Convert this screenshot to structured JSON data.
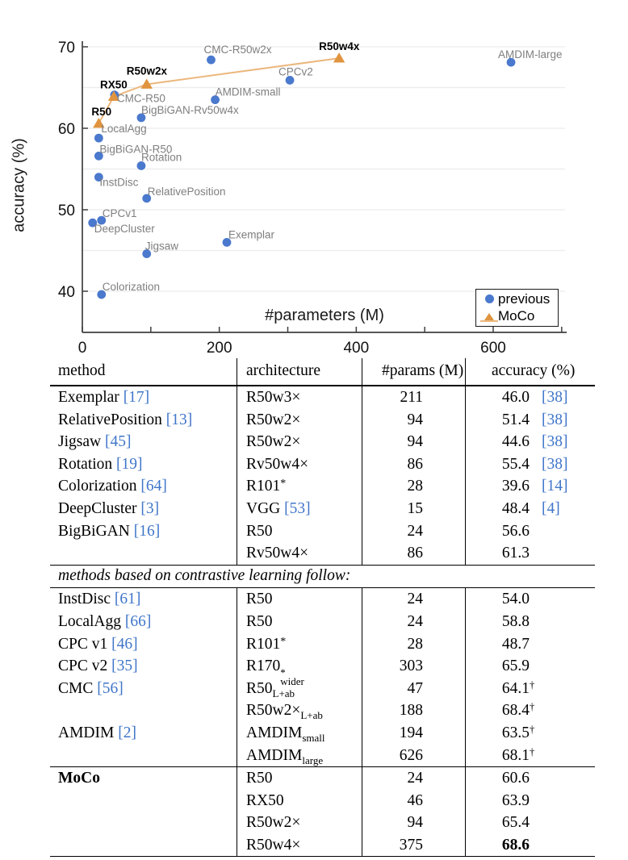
{
  "colors": {
    "previous_marker": "#4a79cd",
    "moco_marker": "#e0943f",
    "moco_line": "#ecb77e",
    "prev_label": "#7f7f7f",
    "grid": "#ececec",
    "axis": "#3f3f3f",
    "citation": "#4076c9"
  },
  "chart_data": {
    "type": "scatter",
    "title": "",
    "xlabel": "#parameters (M)",
    "ylabel": "accuracy (%)",
    "xlim": [
      0,
      700
    ],
    "ylim": [
      34.9,
      70.8
    ],
    "grid": "horizontal, every 5 units",
    "grid_y": [
      40,
      45,
      50,
      55,
      60,
      65,
      70
    ],
    "yticks": [
      40,
      50,
      60,
      70
    ],
    "xticks": [
      0,
      100,
      200,
      300,
      400,
      500,
      600,
      700
    ],
    "xtick_labeled": [
      0,
      200,
      400,
      600
    ],
    "legend_position": "bottom-right",
    "series": [
      {
        "name": "previous",
        "marker": "circle",
        "color": "#4a79cd",
        "label_color": "#7f7f7f",
        "points": [
          {
            "label": "Exemplar",
            "x": 211,
            "y": 46.0,
            "dx": 2,
            "dy": -5
          },
          {
            "label": "RelativePosition",
            "x": 94,
            "y": 51.4,
            "dx": 1,
            "dy": -4
          },
          {
            "label": "Jigsaw",
            "x": 94,
            "y": 44.6,
            "dx": -2,
            "dy": -5
          },
          {
            "label": "Rotation",
            "x": 86,
            "y": 55.4,
            "dx": 0,
            "dy": -6
          },
          {
            "label": "Colorization",
            "x": 28,
            "y": 39.6,
            "dx": 1,
            "dy": -5
          },
          {
            "label": "DeepCluster",
            "x": 15,
            "y": 48.4,
            "dx": 2,
            "dy": 12
          },
          {
            "label": "BigBiGAN-R50",
            "x": 24,
            "y": 56.6,
            "dx": 1,
            "dy": -4
          },
          {
            "label": "BigBiGAN-Rv50w4x",
            "x": 86,
            "y": 61.3,
            "dx": 0,
            "dy": -5
          },
          {
            "label": "InstDisc",
            "x": 24,
            "y": 54.0,
            "dx": 1,
            "dy": 11
          },
          {
            "label": "LocalAgg",
            "x": 24,
            "y": 58.8,
            "dx": 3,
            "dy": -7
          },
          {
            "label": "CPCv1",
            "x": 28,
            "y": 48.7,
            "dx": 1,
            "dy": -4
          },
          {
            "label": "CPCv2",
            "x": 303,
            "y": 65.9,
            "dx": -14,
            "dy": -6
          },
          {
            "label": "CMC-R50",
            "x": 47,
            "y": 64.1,
            "dx": 3,
            "dy": 9
          },
          {
            "label": "CMC-R50w2x",
            "x": 188,
            "y": 68.4,
            "dx": -9,
            "dy": -8
          },
          {
            "label": "AMDIM-small",
            "x": 194,
            "y": 63.5,
            "dx": 0,
            "dy": -5
          },
          {
            "label": "AMDIM-large",
            "x": 626,
            "y": 68.1,
            "dx": -16,
            "dy": -5
          }
        ]
      },
      {
        "name": "MoCo",
        "marker": "triangle",
        "line": true,
        "color": "#e0943f",
        "line_color": "#ecb77e",
        "label_color": "#000000",
        "label_bold": true,
        "points": [
          {
            "label": "R50",
            "x": 24,
            "y": 60.6,
            "dx": -9,
            "dy": -10
          },
          {
            "label": "RX50",
            "x": 46,
            "y": 63.9,
            "dx": -17,
            "dy": -10
          },
          {
            "label": "R50w2x",
            "x": 94,
            "y": 65.4,
            "dx": -25,
            "dy": -12
          },
          {
            "label": "R50w4x",
            "x": 375,
            "y": 68.6,
            "dx": -25,
            "dy": -10
          }
        ]
      }
    ]
  },
  "table": {
    "headers": [
      "method",
      "architecture",
      "#params (M)",
      "accuracy (%)"
    ],
    "rows": [
      {
        "method": "Exemplar",
        "mcite": "[17]",
        "arch": "R50w3×",
        "params": "211",
        "acc": "46.0",
        "acite": "[38]"
      },
      {
        "method": "RelativePosition",
        "mcite": "[13]",
        "arch": "R50w2×",
        "params": "94",
        "acc": "51.4",
        "acite": "[38]"
      },
      {
        "method": "Jigsaw",
        "mcite": "[45]",
        "arch": "R50w2×",
        "params": "94",
        "acc": "44.6",
        "acite": "[38]"
      },
      {
        "method": "Rotation",
        "mcite": "[19]",
        "arch": "Rv50w4×",
        "params": "86",
        "acc": "55.4",
        "acite": "[38]"
      },
      {
        "method": "Colorization",
        "mcite": "[64]",
        "arch": "R101",
        "asup": "*",
        "params": "28",
        "acc": "39.6",
        "acite": "[14]"
      },
      {
        "method": "DeepCluster",
        "mcite": "[3]",
        "arch": "VGG",
        "archcite": "[53]",
        "params": "15",
        "acc": "48.4",
        "acite": "[4]"
      },
      {
        "method": "BigBiGAN",
        "mcite": "[16]",
        "arch": "R50",
        "params": "24",
        "acc": "56.6"
      },
      {
        "arch": "Rv50w4×",
        "params": "86",
        "acc": "61.3"
      },
      {
        "divider": "methods based on contrastive learning follow:"
      },
      {
        "method": "InstDisc",
        "mcite": "[61]",
        "arch": "R50",
        "params": "24",
        "acc": "54.0"
      },
      {
        "method": "LocalAgg",
        "mcite": "[66]",
        "arch": "R50",
        "params": "24",
        "acc": "58.8"
      },
      {
        "method": "CPC v1",
        "mcite": "[46]",
        "arch": "R101",
        "asup": "*",
        "params": "28",
        "acc": "48.7"
      },
      {
        "method": "CPC v2",
        "mcite": "[35]",
        "arch": "R170",
        "asup": "*",
        "asub": "wider",
        "params": "303",
        "acc": "65.9"
      },
      {
        "method": "CMC",
        "mcite": "[56]",
        "arch": "R50",
        "asub": "L+ab",
        "params": "47",
        "acc": "64.1",
        "dagger": true
      },
      {
        "arch": "R50w2×",
        "asub": "L+ab",
        "params": "188",
        "acc": "68.4",
        "dagger": true
      },
      {
        "method": "AMDIM",
        "mcite": "[2]",
        "arch": "AMDIM",
        "asub": "small",
        "params": "194",
        "acc": "63.5",
        "dagger": true
      },
      {
        "arch": "AMDIM",
        "asub": "large",
        "params": "626",
        "acc": "68.1",
        "dagger": true
      },
      {
        "method": "MoCo",
        "mbold": true,
        "rule_above": true,
        "arch": "R50",
        "params": "24",
        "acc": "60.6"
      },
      {
        "arch": "RX50",
        "params": "46",
        "acc": "63.9"
      },
      {
        "arch": "R50w2×",
        "params": "94",
        "acc": "65.4"
      },
      {
        "arch": "R50w4×",
        "params": "375",
        "acc": "68.6",
        "abold": true
      }
    ]
  }
}
